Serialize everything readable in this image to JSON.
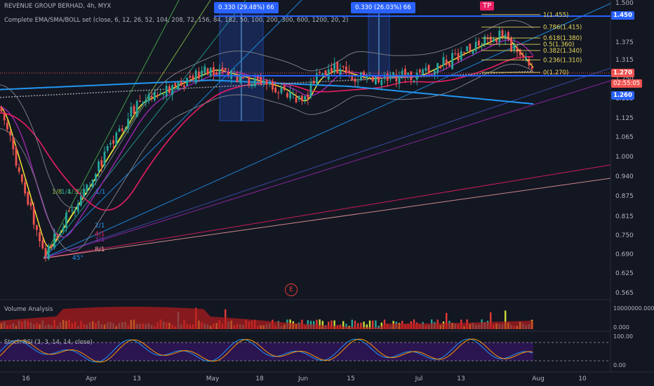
{
  "header": {
    "symbol_line": "REVENUE GROUP BERHAD, 4h, MYX",
    "indicator_line": "Complete EMA/SMA/BOLL set (close, 6, 12, 26, 52, 104, 208, 72, 156, 84, 182, 50, 100, 200, 300, 600, 1200, 20, 2)"
  },
  "price_axis": {
    "ticks": [
      "1.500",
      "1.450",
      "1.375",
      "1.315",
      "1.250",
      "1.185",
      "1.125",
      "1.065",
      "1.000",
      "0.940",
      "0.875",
      "0.815",
      "0.750",
      "0.690",
      "0.625",
      "0.565"
    ],
    "ylim": [
      0.53,
      1.52
    ]
  },
  "price_tags": {
    "top": "1.450",
    "last": "1.270",
    "countdown": "02:55:05",
    "level": "1.260"
  },
  "time_axis": {
    "ticks": [
      "16",
      "Apr",
      "13",
      "May",
      "18",
      "Jun",
      "15",
      "Jul",
      "13",
      "Aug",
      "10"
    ]
  },
  "measurements": [
    {
      "label": "0.330 (29.48%) 66"
    },
    {
      "label": "0.330 (26.03%) 66"
    }
  ],
  "tp_label": "TP",
  "event_marker": "E",
  "fib_levels": [
    {
      "label": "1(1.455)",
      "value": 1.455
    },
    {
      "label": "0.786(1.415)",
      "value": 1.415
    },
    {
      "label": "0.618(1.380)",
      "value": 1.38
    },
    {
      "label": "0.5(1.360)",
      "value": 1.36
    },
    {
      "label": "0.382(1.340)",
      "value": 1.34
    },
    {
      "label": "0.236(1.310)",
      "value": 1.31
    },
    {
      "label": "0(1.270)",
      "value": 1.27
    }
  ],
  "gann_labels": [
    "1/8",
    "1/4",
    "1/3",
    "1/2",
    "1/1",
    "2/1",
    "3/1",
    "4/1",
    "8/1",
    "45°"
  ],
  "volume_panel": {
    "title": "Volume Analysis",
    "ticks": [
      "10000000.000",
      "0.000"
    ]
  },
  "stoch_panel": {
    "title": "Stoch RSI (3, 3, 14, 14, close)",
    "ticks": [
      "100.00",
      "0.00"
    ]
  },
  "colors": {
    "background": "#131722",
    "up": "#26a69a",
    "down": "#ef5350",
    "accent_blue": "#2962ff",
    "fib": "#e8d85c"
  },
  "chart_data": {
    "type": "candlestick",
    "timeframe": "4h",
    "x_ticks": [
      "16",
      "Apr",
      "13",
      "May",
      "18",
      "Jun",
      "15",
      "Jul",
      "13",
      "Aug",
      "10"
    ],
    "approx_close_path": [
      {
        "t": "16",
        "v": 1.16
      },
      {
        "t": "Mar 20",
        "v": 0.78
      },
      {
        "t": "Mar 26",
        "v": 0.69
      },
      {
        "t": "Apr",
        "v": 0.93
      },
      {
        "t": "13",
        "v": 1.17
      },
      {
        "t": "Apr 27",
        "v": 1.24
      },
      {
        "t": "May",
        "v": 1.28
      },
      {
        "t": "18",
        "v": 1.24
      },
      {
        "t": "May 28",
        "v": 1.22
      },
      {
        "t": "Jun",
        "v": 1.17
      },
      {
        "t": "Jun 8",
        "v": 1.25
      },
      {
        "t": "15",
        "v": 1.28
      },
      {
        "t": "Jun 25",
        "v": 1.25
      },
      {
        "t": "Jul",
        "v": 1.26
      },
      {
        "t": "13",
        "v": 1.33
      },
      {
        "t": "Jul 20",
        "v": 1.39
      },
      {
        "t": "Jul 27",
        "v": 1.27
      }
    ],
    "ylim": [
      0.53,
      1.52
    ]
  }
}
